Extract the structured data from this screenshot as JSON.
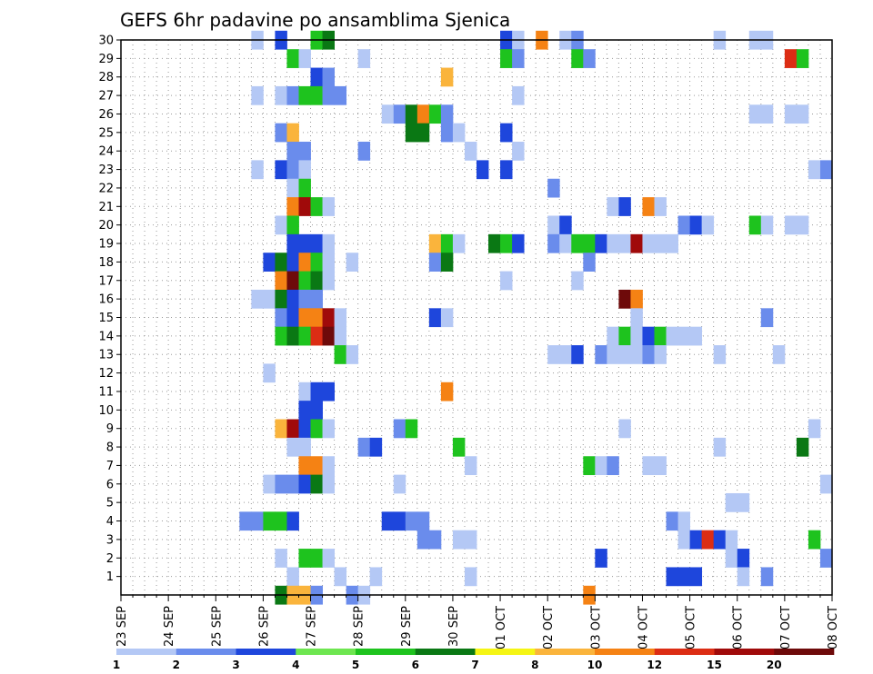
{
  "chart_data": {
    "type": "heatmap",
    "title": "GEFS 6hr padavine po ansamblima Sjenica",
    "x_tick_labels": [
      "23 SEP",
      "24 SEP",
      "25 SEP",
      "26 SEP",
      "27 SEP",
      "28 SEP",
      "29 SEP",
      "30 SEP",
      "01 OCT",
      "02 OCT",
      "03 OCT",
      "04 OCT",
      "05 OCT",
      "06 OCT",
      "07 OCT",
      "08 OCT"
    ],
    "y_tick_labels": [
      "1",
      "2",
      "3",
      "4",
      "5",
      "6",
      "7",
      "8",
      "9",
      "10",
      "11",
      "12",
      "13",
      "14",
      "15",
      "16",
      "17",
      "18",
      "19",
      "20",
      "21",
      "22",
      "23",
      "24",
      "25",
      "26",
      "27",
      "28",
      "29",
      "30"
    ],
    "ylim": [
      0,
      30
    ],
    "xlim": [
      0,
      60
    ],
    "x_step_note_days": 0.25,
    "grid": true,
    "legend_position": "bottom",
    "colorbar": {
      "labels": [
        "1",
        "2",
        "3",
        "4",
        "5",
        "6",
        "7",
        "8",
        "10",
        "12",
        "15",
        "20"
      ],
      "colors": [
        "#b4c8f5",
        "#6a8cec",
        "#1e46dc",
        "#6ee650",
        "#1ec31e",
        "#0a7814",
        "#f5f514",
        "#fab43c",
        "#f58214",
        "#dc2d14",
        "#a00a0a",
        "#6e0a0a"
      ]
    },
    "cells": [
      [
        30,
        12,
        1
      ],
      [
        30,
        14,
        3
      ],
      [
        30,
        17,
        5
      ],
      [
        30,
        18,
        6
      ],
      [
        30,
        33,
        3
      ],
      [
        30,
        34,
        1
      ],
      [
        30,
        36,
        10
      ],
      [
        30,
        38,
        1
      ],
      [
        30,
        39,
        2
      ],
      [
        30,
        51,
        1
      ],
      [
        30,
        54,
        1
      ],
      [
        30,
        55,
        1
      ],
      [
        29,
        15,
        5
      ],
      [
        29,
        16,
        1
      ],
      [
        29,
        21,
        1
      ],
      [
        29,
        33,
        5
      ],
      [
        29,
        34,
        2
      ],
      [
        29,
        39,
        5
      ],
      [
        29,
        40,
        2
      ],
      [
        29,
        57,
        12
      ],
      [
        29,
        58,
        5
      ],
      [
        28,
        17,
        3
      ],
      [
        28,
        18,
        2
      ],
      [
        28,
        28,
        8
      ],
      [
        27,
        12,
        1
      ],
      [
        27,
        14,
        1
      ],
      [
        27,
        15,
        2
      ],
      [
        27,
        16,
        5
      ],
      [
        27,
        17,
        5
      ],
      [
        27,
        18,
        2
      ],
      [
        27,
        19,
        2
      ],
      [
        27,
        34,
        1
      ],
      [
        26,
        23,
        1
      ],
      [
        26,
        24,
        2
      ],
      [
        26,
        25,
        6
      ],
      [
        26,
        26,
        10
      ],
      [
        26,
        27,
        5
      ],
      [
        26,
        28,
        2
      ],
      [
        26,
        54,
        1
      ],
      [
        26,
        55,
        1
      ],
      [
        26,
        57,
        1
      ],
      [
        26,
        58,
        1
      ],
      [
        25,
        14,
        2
      ],
      [
        25,
        15,
        8
      ],
      [
        25,
        25,
        6
      ],
      [
        25,
        26,
        6
      ],
      [
        25,
        28,
        2
      ],
      [
        25,
        29,
        1
      ],
      [
        25,
        33,
        3
      ],
      [
        24,
        15,
        2
      ],
      [
        24,
        16,
        2
      ],
      [
        24,
        21,
        2
      ],
      [
        24,
        30,
        1
      ],
      [
        24,
        34,
        1
      ],
      [
        23,
        12,
        1
      ],
      [
        23,
        14,
        3
      ],
      [
        23,
        15,
        2
      ],
      [
        23,
        16,
        1
      ],
      [
        23,
        31,
        3
      ],
      [
        23,
        33,
        3
      ],
      [
        23,
        59,
        1
      ],
      [
        23,
        60,
        2
      ],
      [
        22,
        15,
        1
      ],
      [
        22,
        16,
        5
      ],
      [
        22,
        37,
        2
      ],
      [
        21,
        15,
        10
      ],
      [
        21,
        16,
        15
      ],
      [
        21,
        17,
        5
      ],
      [
        21,
        18,
        1
      ],
      [
        21,
        42,
        1
      ],
      [
        21,
        43,
        3
      ],
      [
        21,
        45,
        10
      ],
      [
        21,
        46,
        1
      ],
      [
        20,
        14,
        1
      ],
      [
        20,
        15,
        5
      ],
      [
        20,
        37,
        1
      ],
      [
        20,
        38,
        3
      ],
      [
        20,
        48,
        2
      ],
      [
        20,
        49,
        3
      ],
      [
        20,
        50,
        1
      ],
      [
        20,
        54,
        5
      ],
      [
        20,
        55,
        1
      ],
      [
        20,
        57,
        1
      ],
      [
        20,
        58,
        1
      ],
      [
        19,
        15,
        3
      ],
      [
        19,
        16,
        3
      ],
      [
        19,
        17,
        3
      ],
      [
        19,
        18,
        1
      ],
      [
        19,
        27,
        8
      ],
      [
        19,
        28,
        5
      ],
      [
        19,
        29,
        1
      ],
      [
        19,
        32,
        6
      ],
      [
        19,
        33,
        5
      ],
      [
        19,
        34,
        3
      ],
      [
        19,
        37,
        2
      ],
      [
        19,
        38,
        1
      ],
      [
        19,
        39,
        5
      ],
      [
        19,
        40,
        5
      ],
      [
        19,
        41,
        3
      ],
      [
        19,
        42,
        1
      ],
      [
        19,
        43,
        1
      ],
      [
        19,
        44,
        15
      ],
      [
        19,
        45,
        1
      ],
      [
        19,
        46,
        1
      ],
      [
        19,
        47,
        1
      ],
      [
        18,
        13,
        3
      ],
      [
        18,
        14,
        6
      ],
      [
        18,
        15,
        3
      ],
      [
        18,
        16,
        10
      ],
      [
        18,
        17,
        5
      ],
      [
        18,
        18,
        1
      ],
      [
        18,
        20,
        1
      ],
      [
        18,
        27,
        2
      ],
      [
        18,
        28,
        6
      ],
      [
        18,
        40,
        2
      ],
      [
        17,
        14,
        10
      ],
      [
        17,
        15,
        20
      ],
      [
        17,
        16,
        5
      ],
      [
        17,
        17,
        6
      ],
      [
        17,
        18,
        1
      ],
      [
        17,
        33,
        1
      ],
      [
        17,
        39,
        1
      ],
      [
        16,
        12,
        1
      ],
      [
        16,
        13,
        1
      ],
      [
        16,
        14,
        6
      ],
      [
        16,
        15,
        3
      ],
      [
        16,
        16,
        2
      ],
      [
        16,
        17,
        2
      ],
      [
        16,
        43,
        20
      ],
      [
        16,
        44,
        10
      ],
      [
        15,
        14,
        2
      ],
      [
        15,
        15,
        3
      ],
      [
        15,
        16,
        10
      ],
      [
        15,
        17,
        10
      ],
      [
        15,
        18,
        15
      ],
      [
        15,
        19,
        1
      ],
      [
        15,
        27,
        3
      ],
      [
        15,
        28,
        1
      ],
      [
        15,
        44,
        1
      ],
      [
        15,
        55,
        2
      ],
      [
        14,
        14,
        5
      ],
      [
        14,
        15,
        6
      ],
      [
        14,
        16,
        5
      ],
      [
        14,
        17,
        12
      ],
      [
        14,
        18,
        20
      ],
      [
        14,
        19,
        1
      ],
      [
        14,
        42,
        1
      ],
      [
        14,
        43,
        5
      ],
      [
        14,
        44,
        1
      ],
      [
        14,
        45,
        3
      ],
      [
        14,
        46,
        5
      ],
      [
        14,
        47,
        1
      ],
      [
        14,
        48,
        1
      ],
      [
        14,
        49,
        1
      ],
      [
        13,
        19,
        5
      ],
      [
        13,
        20,
        1
      ],
      [
        13,
        37,
        1
      ],
      [
        13,
        38,
        1
      ],
      [
        13,
        39,
        3
      ],
      [
        13,
        41,
        2
      ],
      [
        13,
        42,
        1
      ],
      [
        13,
        43,
        1
      ],
      [
        13,
        44,
        1
      ],
      [
        13,
        45,
        2
      ],
      [
        13,
        46,
        1
      ],
      [
        13,
        51,
        1
      ],
      [
        13,
        56,
        1
      ],
      [
        12,
        13,
        1
      ],
      [
        11,
        16,
        1
      ],
      [
        11,
        17,
        3
      ],
      [
        11,
        18,
        3
      ],
      [
        11,
        28,
        10
      ],
      [
        10,
        16,
        3
      ],
      [
        10,
        17,
        3
      ],
      [
        9,
        14,
        8
      ],
      [
        9,
        15,
        15
      ],
      [
        9,
        16,
        3
      ],
      [
        9,
        17,
        5
      ],
      [
        9,
        18,
        1
      ],
      [
        9,
        24,
        2
      ],
      [
        9,
        25,
        5
      ],
      [
        9,
        43,
        1
      ],
      [
        9,
        59,
        1
      ],
      [
        8,
        15,
        1
      ],
      [
        8,
        16,
        1
      ],
      [
        8,
        21,
        2
      ],
      [
        8,
        22,
        3
      ],
      [
        8,
        29,
        5
      ],
      [
        8,
        51,
        1
      ],
      [
        8,
        58,
        6
      ],
      [
        7,
        16,
        10
      ],
      [
        7,
        17,
        10
      ],
      [
        7,
        18,
        1
      ],
      [
        7,
        30,
        1
      ],
      [
        7,
        40,
        5
      ],
      [
        7,
        41,
        1
      ],
      [
        7,
        42,
        2
      ],
      [
        7,
        45,
        1
      ],
      [
        7,
        46,
        1
      ],
      [
        6,
        13,
        1
      ],
      [
        6,
        14,
        2
      ],
      [
        6,
        15,
        2
      ],
      [
        6,
        16,
        3
      ],
      [
        6,
        17,
        6
      ],
      [
        6,
        18,
        1
      ],
      [
        6,
        24,
        1
      ],
      [
        6,
        60,
        1
      ],
      [
        5,
        52,
        1
      ],
      [
        5,
        53,
        1
      ],
      [
        4,
        11,
        2
      ],
      [
        4,
        12,
        2
      ],
      [
        4,
        13,
        5
      ],
      [
        4,
        14,
        5
      ],
      [
        4,
        15,
        3
      ],
      [
        4,
        23,
        3
      ],
      [
        4,
        24,
        3
      ],
      [
        4,
        25,
        2
      ],
      [
        4,
        26,
        2
      ],
      [
        4,
        47,
        2
      ],
      [
        4,
        48,
        1
      ],
      [
        3,
        26,
        2
      ],
      [
        3,
        27,
        2
      ],
      [
        3,
        29,
        1
      ],
      [
        3,
        30,
        1
      ],
      [
        3,
        48,
        1
      ],
      [
        3,
        49,
        3
      ],
      [
        3,
        50,
        12
      ],
      [
        3,
        51,
        3
      ],
      [
        3,
        52,
        1
      ],
      [
        3,
        59,
        5
      ],
      [
        2,
        14,
        1
      ],
      [
        2,
        16,
        5
      ],
      [
        2,
        17,
        5
      ],
      [
        2,
        18,
        1
      ],
      [
        2,
        41,
        3
      ],
      [
        2,
        52,
        1
      ],
      [
        2,
        53,
        3
      ],
      [
        2,
        60,
        2
      ],
      [
        1,
        15,
        1
      ],
      [
        1,
        19,
        1
      ],
      [
        1,
        22,
        1
      ],
      [
        1,
        30,
        1
      ],
      [
        1,
        47,
        3
      ],
      [
        1,
        48,
        3
      ],
      [
        1,
        49,
        3
      ],
      [
        1,
        53,
        1
      ],
      [
        1,
        55,
        2
      ],
      [
        0,
        14,
        6
      ],
      [
        0,
        15,
        8
      ],
      [
        0,
        16,
        8
      ],
      [
        0,
        17,
        2
      ],
      [
        0,
        20,
        2
      ],
      [
        0,
        21,
        1
      ],
      [
        0,
        40,
        10
      ]
    ]
  }
}
